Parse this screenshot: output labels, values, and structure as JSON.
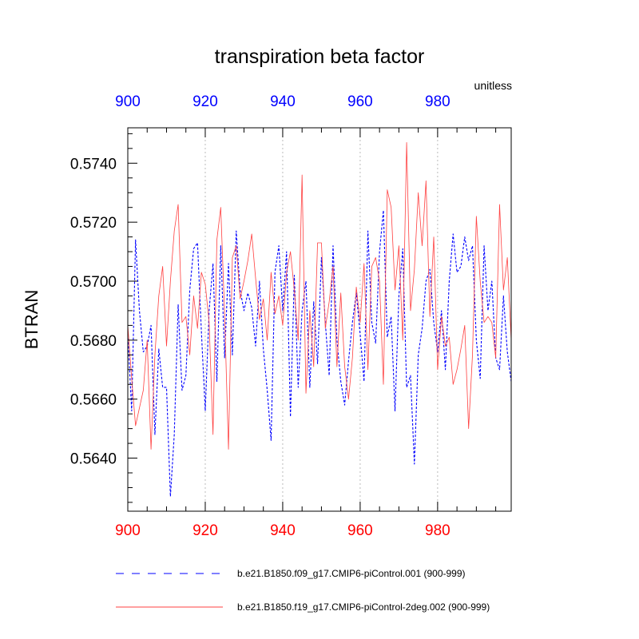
{
  "chart_data": {
    "type": "line",
    "title": "transpiration beta factor",
    "units_label": "unitless",
    "ylabel": "BTRAN",
    "xlabel": "",
    "xlim": [
      900,
      999
    ],
    "ylim": [
      0.5622,
      0.5752
    ],
    "x_ticks": [
      "900",
      "920",
      "940",
      "960",
      "980"
    ],
    "y_ticks": [
      "0.5640",
      "0.5660",
      "0.5680",
      "0.5700",
      "0.5720",
      "0.5740"
    ],
    "grid": "vertical-dotted",
    "top_axis_color": "#0000ff",
    "bottom_axis_color": "#ff0000",
    "x": [
      900,
      901,
      902,
      903,
      904,
      905,
      906,
      907,
      908,
      909,
      910,
      911,
      912,
      913,
      914,
      915,
      916,
      917,
      918,
      919,
      920,
      921,
      922,
      923,
      924,
      925,
      926,
      927,
      928,
      929,
      930,
      931,
      932,
      933,
      934,
      935,
      936,
      937,
      938,
      939,
      940,
      941,
      942,
      943,
      944,
      945,
      946,
      947,
      948,
      949,
      950,
      951,
      952,
      953,
      954,
      955,
      956,
      957,
      958,
      959,
      960,
      961,
      962,
      963,
      964,
      965,
      966,
      967,
      968,
      969,
      970,
      971,
      972,
      973,
      974,
      975,
      976,
      977,
      978,
      979,
      980,
      981,
      982,
      983,
      984,
      985,
      986,
      987,
      988,
      989,
      990,
      991,
      992,
      993,
      994,
      995,
      996,
      997,
      998,
      999
    ],
    "series": [
      {
        "name": "b.e21.B1850.f09_g17.CMIP6-piControl.001 (900-999)",
        "color": "#0000ff",
        "dash": "dashed",
        "values": [
          0.5682,
          0.5656,
          0.5714,
          0.569,
          0.5676,
          0.5678,
          0.5685,
          0.5648,
          0.5677,
          0.5664,
          0.5664,
          0.5627,
          0.5648,
          0.5692,
          0.5663,
          0.5668,
          0.5697,
          0.5711,
          0.5713,
          0.5683,
          0.5656,
          0.569,
          0.5706,
          0.5666,
          0.5712,
          0.5674,
          0.5706,
          0.5675,
          0.5717,
          0.5697,
          0.569,
          0.5696,
          0.5691,
          0.5678,
          0.57,
          0.5677,
          0.5663,
          0.5646,
          0.5703,
          0.5712,
          0.569,
          0.571,
          0.5654,
          0.5702,
          0.5664,
          0.569,
          0.57,
          0.5664,
          0.5693,
          0.5672,
          0.5708,
          0.5686,
          0.5668,
          0.5712,
          0.568,
          0.5666,
          0.5658,
          0.5673,
          0.5686,
          0.5696,
          0.5682,
          0.5666,
          0.5717,
          0.5686,
          0.5679,
          0.571,
          0.5724,
          0.5681,
          0.5688,
          0.5656,
          0.5695,
          0.5711,
          0.5664,
          0.5668,
          0.5638,
          0.5675,
          0.5684,
          0.57,
          0.5704,
          0.5686,
          0.5676,
          0.569,
          0.567,
          0.57,
          0.5716,
          0.5703,
          0.5705,
          0.5715,
          0.5707,
          0.5712,
          0.568,
          0.5667,
          0.5712,
          0.569,
          0.57,
          0.5674,
          0.567,
          0.5695,
          0.5676,
          0.5666
        ]
      },
      {
        "name": "b.e21.B1850.f19_g17.CMIP6-piControl-2deg.002 (900-999)",
        "color": "#ff4040",
        "dash": "solid",
        "values": [
          0.5685,
          0.5667,
          0.5651,
          0.5657,
          0.5663,
          0.568,
          0.5643,
          0.5675,
          0.5695,
          0.5705,
          0.5678,
          0.57,
          0.5717,
          0.5726,
          0.5686,
          0.5688,
          0.5675,
          0.5695,
          0.5684,
          0.5703,
          0.5699,
          0.5686,
          0.5648,
          0.5714,
          0.5725,
          0.5689,
          0.5643,
          0.5708,
          0.5712,
          0.5694,
          0.57,
          0.5707,
          0.5716,
          0.5701,
          0.5687,
          0.5694,
          0.568,
          0.5703,
          0.5689,
          0.5695,
          0.5685,
          0.5703,
          0.571,
          0.5697,
          0.568,
          0.5736,
          0.5662,
          0.569,
          0.5671,
          0.5713,
          0.5713,
          0.5684,
          0.5693,
          0.5705,
          0.5671,
          0.5696,
          0.5671,
          0.566,
          0.5674,
          0.5698,
          0.5686,
          0.5706,
          0.567,
          0.5705,
          0.5708,
          0.57,
          0.5665,
          0.5731,
          0.5725,
          0.5697,
          0.5712,
          0.568,
          0.5747,
          0.569,
          0.5704,
          0.573,
          0.5712,
          0.5734,
          0.5688,
          0.5715,
          0.567,
          0.5688,
          0.5678,
          0.5681,
          0.5665,
          0.567,
          0.5677,
          0.5685,
          0.565,
          0.5675,
          0.5722,
          0.57,
          0.5686,
          0.5688,
          0.5686,
          0.5674,
          0.5726,
          0.5697,
          0.5708,
          0.568
        ]
      }
    ]
  }
}
